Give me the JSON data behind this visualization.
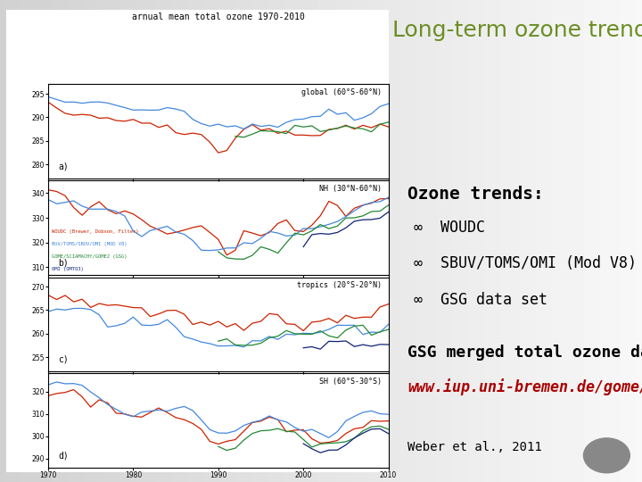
{
  "title": "Long-term ozone trends",
  "title_color": "#6b8e23",
  "title_fontsize": 18,
  "ozone_trends_header": "Ozone trends:",
  "ozone_bullets": [
    "WOUDC",
    "SBUV/TOMS/OMI (Mod V8)",
    "GSG data set"
  ],
  "gsg_header": "GSG merged total ozone data:",
  "url": "www.iup.uni-bremen.de/gome/wfdoas",
  "url_color": "#aa0000",
  "citation": "Weber et al., 2011",
  "bg_left": "#d0d0d0",
  "bg_right": "#f5f5f5",
  "chart_title": "arnual mean total ozone 1970-2010",
  "line_colors": {
    "red": "#cc2200",
    "blue": "#4488dd",
    "green": "#228833",
    "darkblue": "#112277"
  },
  "panel_configs": [
    {
      "yticks": [
        280,
        285,
        290,
        295
      ],
      "ylim": [
        277,
        297
      ],
      "region": "global (60°S-60°N)",
      "label": "a)"
    },
    {
      "yticks": [
        310,
        320,
        330,
        340
      ],
      "ylim": [
        307,
        345
      ],
      "region": "NH (30°N-60°N)",
      "label": "b)"
    },
    {
      "yticks": [
        255,
        260,
        265,
        270
      ],
      "ylim": [
        252,
        272
      ],
      "region": "tropics (20°S-20°N)",
      "label": "c)"
    },
    {
      "yticks": [
        290,
        300,
        310,
        320
      ],
      "ylim": [
        286,
        328
      ],
      "region": "SH (60°S-30°S)",
      "label": "d)"
    }
  ]
}
